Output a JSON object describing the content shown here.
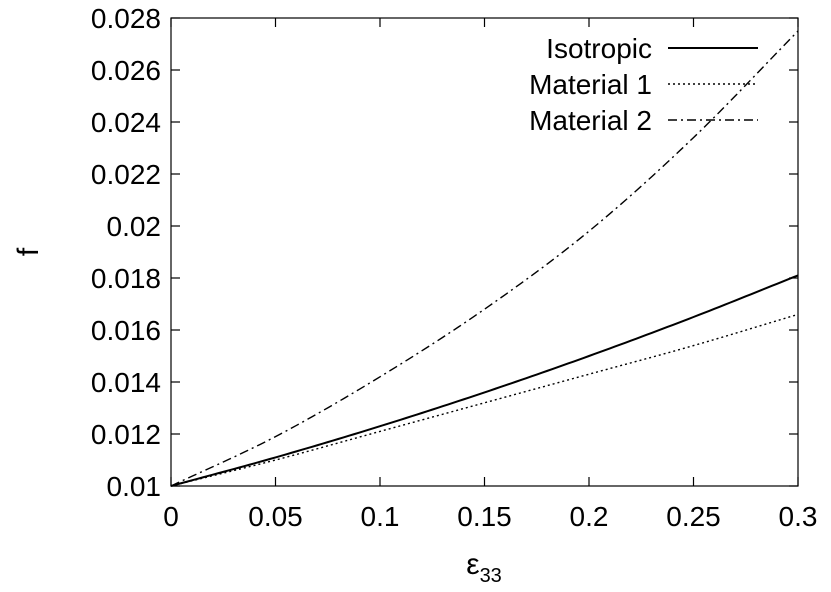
{
  "chart_data": {
    "type": "line",
    "title": "",
    "xlabel": "ε",
    "xlabel_subscript": "33",
    "ylabel": "f",
    "xlim": [
      0,
      0.3
    ],
    "ylim": [
      0.01,
      0.028
    ],
    "x_ticks": [
      0,
      0.05,
      0.1,
      0.15,
      0.2,
      0.25,
      0.3
    ],
    "x_tick_labels": [
      "0",
      "0.05",
      "0.1",
      "0.15",
      "0.2",
      "0.25",
      "0.3"
    ],
    "y_ticks": [
      0.01,
      0.012,
      0.014,
      0.016,
      0.018,
      0.02,
      0.022,
      0.024,
      0.026,
      0.028
    ],
    "y_tick_labels": [
      "0.01",
      "0.012",
      "0.014",
      "0.016",
      "0.018",
      "0.02",
      "0.022",
      "0.024",
      "0.026",
      "0.028"
    ],
    "grid": false,
    "legend_position": "top-right",
    "x": [
      0,
      0.05,
      0.1,
      0.15,
      0.2,
      0.25,
      0.3
    ],
    "series": [
      {
        "name": "Isotropic",
        "values": [
          0.01,
          0.0111,
          0.0123,
          0.0136,
          0.015,
          0.0165,
          0.0181
        ],
        "line_style": "solid",
        "color": "#000000"
      },
      {
        "name": "Material 1",
        "values": [
          0.01,
          0.011,
          0.0121,
          0.0132,
          0.0143,
          0.0154,
          0.0166
        ],
        "line_style": "dotted",
        "color": "#000000"
      },
      {
        "name": "Material 2",
        "values": [
          0.01,
          0.0119,
          0.0142,
          0.0168,
          0.0198,
          0.0234,
          0.0275
        ],
        "line_style": "dash-dot",
        "color": "#000000"
      }
    ]
  }
}
